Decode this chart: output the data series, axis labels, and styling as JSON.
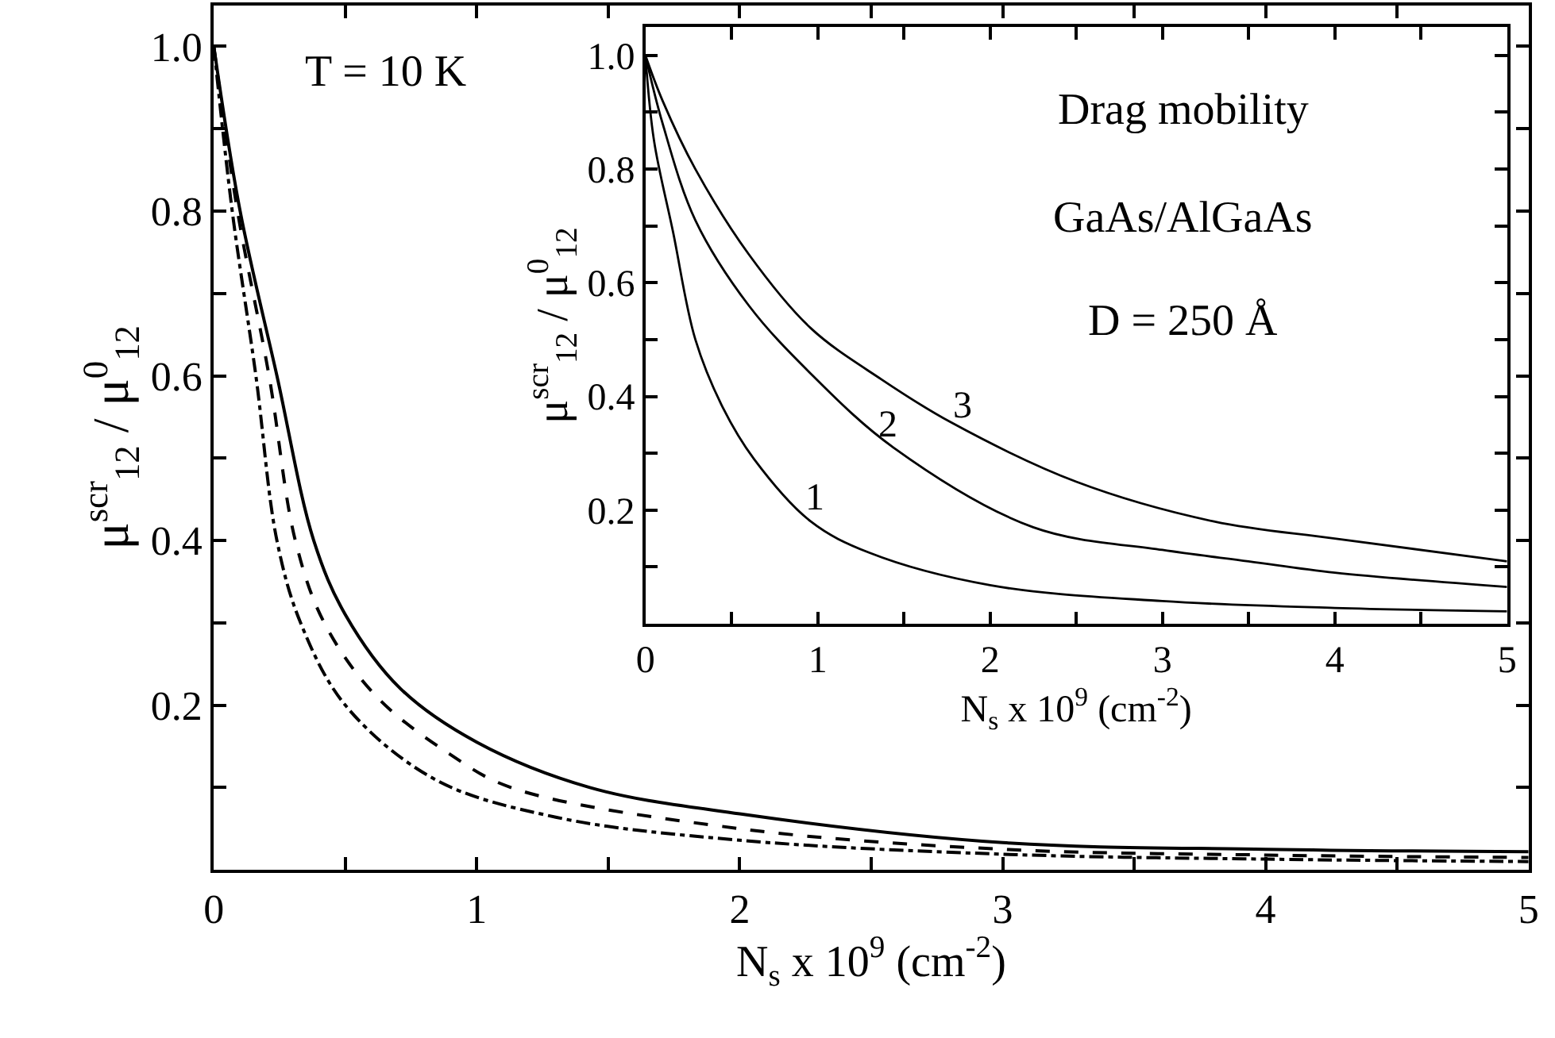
{
  "chart_data": [
    {
      "type": "line",
      "xlabel": "N$_{s}$ x 10$^{9}$ (cm$^{-2}$)",
      "ylabel": "μ$^{scr}$$_{12}$ / μ$^{0}$$_{12}$",
      "xlim": [
        0,
        5
      ],
      "ylim": [
        0,
        1.05
      ],
      "xticks": [
        0,
        {
          "value": 0.5,
          "label": null
        },
        1,
        {
          "value": 1.5,
          "label": null
        },
        2,
        {
          "value": 2.5,
          "label": null
        },
        3,
        {
          "value": 3.5,
          "label": null
        },
        4,
        {
          "value": 4.5,
          "label": null
        },
        5
      ],
      "yticks": [
        {
          "value": 0.1,
          "label": null
        },
        0.2,
        {
          "value": 0.3,
          "label": null
        },
        0.4,
        {
          "value": 0.5,
          "label": null
        },
        0.6,
        {
          "value": 0.7,
          "label": null
        },
        0.8,
        {
          "value": 0.9,
          "label": null
        },
        "1.0"
      ],
      "marker": "none",
      "annotations": [
        "T = 10 K"
      ],
      "series": [
        {
          "color": "#000000",
          "line_style": "solid",
          "x": [
            0,
            0.1,
            0.24,
            0.38,
            0.5,
            0.71,
            1.0,
            1.43,
            2,
            3,
            4,
            5
          ],
          "values": [
            1,
            0.8,
            0.6,
            0.4,
            0.31,
            0.22,
            0.155,
            0.1,
            0.068,
            0.033,
            0.025,
            0.022
          ]
        },
        {
          "color": "#000000",
          "line_style": "dashed",
          "x": [
            0,
            0.09,
            0.21,
            0.31,
            0.42,
            0.62,
            0.9,
            1.13,
            2,
            3,
            4,
            5
          ],
          "values": [
            1,
            0.8,
            0.6,
            0.4,
            0.3,
            0.21,
            0.14,
            0.1,
            0.05,
            0.025,
            0.018,
            0.015
          ]
        },
        {
          "color": "#000000",
          "line_style": "dashdot",
          "x": [
            0,
            0.07,
            0.16,
            0.24,
            0.33,
            0.5,
            0.84,
            1.3,
            2,
            3,
            4,
            5
          ],
          "values": [
            1,
            0.8,
            0.6,
            0.4,
            0.3,
            0.2,
            0.11,
            0.064,
            0.036,
            0.019,
            0.013,
            0.01
          ]
        }
      ]
    },
    {
      "type": "line",
      "xlabel": "N$_{s}$ x 10$^{9}$ (cm$^{-2}$)",
      "ylabel": "μ$^{scr}$$_{12}$ / μ$^{0}$$_{12}$",
      "xlim": [
        0,
        5
      ],
      "ylim": [
        0,
        1.05
      ],
      "xticks": [
        0,
        {
          "value": 0.5,
          "label": null
        },
        1,
        {
          "value": 1.5,
          "label": null
        },
        2,
        {
          "value": 2.5,
          "label": null
        },
        3,
        {
          "value": 3.5,
          "label": null
        },
        4,
        {
          "value": 4.5,
          "label": null
        },
        5
      ],
      "yticks": [
        {
          "value": 0.1,
          "label": null
        },
        0.2,
        {
          "value": 0.3,
          "label": null
        },
        0.4,
        {
          "value": 0.5,
          "label": null
        },
        0.6,
        {
          "value": 0.7,
          "label": null
        },
        0.8,
        {
          "value": 0.9,
          "label": null
        },
        "1.0"
      ],
      "marker": "none",
      "annotations": [
        "Drag mobility",
        "GaAs/AlGaAs",
        "D = 250 Å",
        "1",
        "2",
        "3"
      ],
      "series": [
        {
          "color": "#000000",
          "line_style": "solid",
          "x": [
            0,
            0.05,
            0.16,
            0.29,
            0.45,
            0.63,
            0.96,
            1.3,
            2,
            3,
            4,
            5
          ],
          "values": [
            1,
            0.85,
            0.69,
            0.5,
            0.38,
            0.29,
            0.18,
            0.125,
            0.068,
            0.04,
            0.028,
            0.022
          ]
        },
        {
          "color": "#000000",
          "line_style": "solid",
          "x": [
            0,
            0.1,
            0.29,
            0.6,
            0.96,
            1.44,
            2.25,
            3,
            3.5,
            4,
            5
          ],
          "values": [
            1,
            0.88,
            0.71,
            0.56,
            0.44,
            0.31,
            0.17,
            0.13,
            0.11,
            0.09,
            0.065
          ]
        },
        {
          "color": "#000000",
          "line_style": "solid",
          "x": [
            0,
            0.1,
            0.29,
            0.6,
            0.96,
            1.37,
            1.77,
            2.5,
            3.3,
            4,
            5
          ],
          "values": [
            1,
            0.92,
            0.8,
            0.65,
            0.52,
            0.43,
            0.355,
            0.25,
            0.18,
            0.15,
            0.11
          ]
        }
      ]
    }
  ]
}
